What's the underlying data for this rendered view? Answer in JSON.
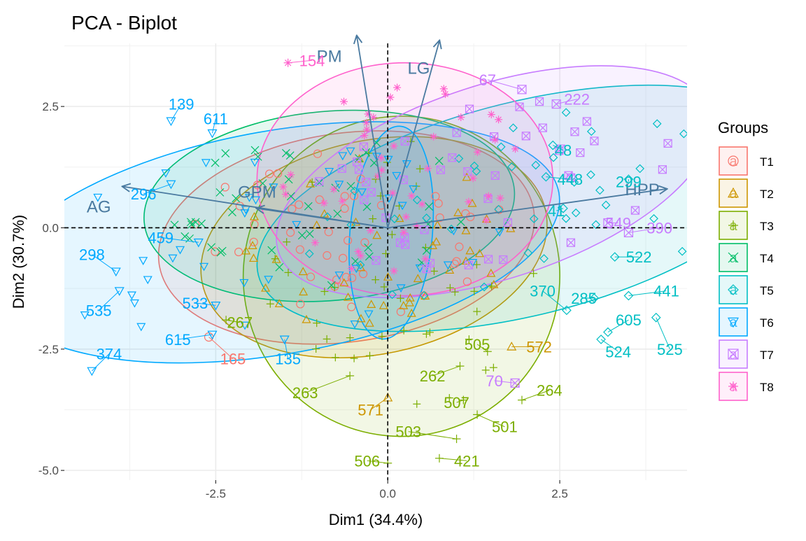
{
  "chart_data": {
    "type": "scatter",
    "title": "PCA - Biplot",
    "xlabel": "Dim1 (34.4%)",
    "ylabel": "Dim2 (30.7%)",
    "xlim": [
      -4.7,
      4.35
    ],
    "ylim": [
      -5.2,
      3.8
    ],
    "xticks": [
      -2.5,
      0.0,
      2.5
    ],
    "xtick_labels": [
      "-2.5",
      "0.0",
      "2.5"
    ],
    "yticks": [
      -5.0,
      -2.5,
      0.0,
      2.5
    ],
    "ytick_labels": [
      "-5.0",
      "-2.5",
      "0.0",
      "2.5"
    ],
    "grid": true,
    "legend": {
      "title": "Groups",
      "position": "right"
    },
    "groups": [
      {
        "name": "T1",
        "color": "#F8766D",
        "symbol": "circle"
      },
      {
        "name": "T2",
        "color": "#CD9600",
        "symbol": "triangle"
      },
      {
        "name": "T3",
        "color": "#7CAE00",
        "symbol": "plus"
      },
      {
        "name": "T4",
        "color": "#00BE67",
        "symbol": "cross"
      },
      {
        "name": "T5",
        "color": "#00BFC4",
        "symbol": "diamond"
      },
      {
        "name": "T6",
        "color": "#00A9FF",
        "symbol": "triangle-down"
      },
      {
        "name": "T7",
        "color": "#C77CFF",
        "symbol": "square-x"
      },
      {
        "name": "T8",
        "color": "#FF61CC",
        "symbol": "asterisk"
      }
    ],
    "ellipses": [
      {
        "group": "T1",
        "cx": -0.6,
        "cy": -0.2,
        "rx": 2.75,
        "ry": 2.15,
        "angle": -8
      },
      {
        "group": "T2",
        "cx": -0.2,
        "cy": -0.4,
        "rx": 2.55,
        "ry": 2.2,
        "angle": -12
      },
      {
        "group": "T3",
        "cx": 0.2,
        "cy": -1.0,
        "rx": 2.3,
        "ry": 3.3,
        "angle": 5
      },
      {
        "group": "T4",
        "cx": -0.85,
        "cy": 0.45,
        "rx": 2.7,
        "ry": 1.95,
        "angle": -5
      },
      {
        "group": "T5",
        "cx": 2.0,
        "cy": 0.4,
        "rx": 4.0,
        "ry": 2.2,
        "angle": -14
      },
      {
        "group": "T6",
        "cx": -1.6,
        "cy": -0.3,
        "rx": 4.15,
        "ry": 2.3,
        "angle": -10
      },
      {
        "group": "T7",
        "cx": 1.55,
        "cy": 0.95,
        "rx": 3.3,
        "ry": 2.0,
        "angle": -18
      },
      {
        "group": "T8",
        "cx": 0.25,
        "cy": 1.0,
        "rx": 2.15,
        "ry": 2.4,
        "angle": 0
      },
      {
        "group": "T6-inner",
        "cx": 0.05,
        "cy": -0.1,
        "rx": 0.6,
        "ry": 2.2,
        "angle": 5
      }
    ],
    "variables": [
      {
        "name": "PM",
        "x": -0.45,
        "y": 3.95,
        "lx": -0.85,
        "ly": 3.55
      },
      {
        "name": "LG",
        "x": 0.75,
        "y": 3.85,
        "lx": 0.45,
        "ly": 3.3
      },
      {
        "name": "AG",
        "x": -3.85,
        "y": 0.85,
        "lx": -4.2,
        "ly": 0.45
      },
      {
        "name": "GPM",
        "x": -1.9,
        "y": 0.4,
        "lx": -1.9,
        "ly": 0.75
      },
      {
        "name": "HPP",
        "x": 4.05,
        "y": 0.8,
        "lx": 3.7,
        "ly": 0.8
      }
    ],
    "labeled_points": [
      {
        "id": "154",
        "group": "T8",
        "x": -1.45,
        "y": 3.4,
        "lx": -1.1,
        "ly": 3.45
      },
      {
        "id": "67",
        "group": "T7",
        "x": 1.95,
        "y": 2.85,
        "lx": 1.45,
        "ly": 3.05
      },
      {
        "id": "222",
        "group": "T7",
        "x": 2.45,
        "y": 2.55,
        "lx": 2.75,
        "ly": 2.65
      },
      {
        "id": "48",
        "group": "T5",
        "x": 2.4,
        "y": 1.7,
        "lx": 2.55,
        "ly": 1.6
      },
      {
        "id": "448",
        "group": "T5",
        "x": 2.3,
        "y": 1.05,
        "lx": 2.65,
        "ly": 1.0
      },
      {
        "id": "299",
        "group": "T5",
        "x": 3.5,
        "y": 1.0,
        "lx": 3.5,
        "ly": 0.95
      },
      {
        "id": "41",
        "group": "T5",
        "x": 2.55,
        "y": 0.4,
        "lx": 2.45,
        "ly": 0.35
      },
      {
        "id": "549",
        "group": "T7",
        "x": 3.2,
        "y": 0.1,
        "lx": 3.35,
        "ly": 0.1
      },
      {
        "id": "390",
        "group": "T7",
        "x": 3.5,
        "y": -0.1,
        "lx": 3.95,
        "ly": 0.0
      },
      {
        "id": "522",
        "group": "T5",
        "x": 3.3,
        "y": -0.6,
        "lx": 3.65,
        "ly": -0.6
      },
      {
        "id": "441",
        "group": "T5",
        "x": 3.5,
        "y": -1.4,
        "lx": 4.05,
        "ly": -1.3
      },
      {
        "id": "370",
        "group": "T5",
        "x": 2.6,
        "y": -1.7,
        "lx": 2.25,
        "ly": -1.3
      },
      {
        "id": "285",
        "group": "T5",
        "x": 3.0,
        "y": -1.45,
        "lx": 2.85,
        "ly": -1.45
      },
      {
        "id": "605",
        "group": "T5",
        "x": 3.2,
        "y": -2.15,
        "lx": 3.5,
        "ly": -1.9
      },
      {
        "id": "524",
        "group": "T5",
        "x": 3.1,
        "y": -2.3,
        "lx": 3.35,
        "ly": -2.55
      },
      {
        "id": "525",
        "group": "T5",
        "x": 3.9,
        "y": -1.85,
        "lx": 4.1,
        "ly": -2.5
      },
      {
        "id": "572",
        "group": "T2",
        "x": 1.8,
        "y": -2.45,
        "lx": 2.2,
        "ly": -2.45
      },
      {
        "id": "505",
        "group": "T3",
        "x": 1.45,
        "y": -2.55,
        "lx": 1.3,
        "ly": -2.4
      },
      {
        "id": "70",
        "group": "T7",
        "x": 1.85,
        "y": -3.2,
        "lx": 1.55,
        "ly": -3.15
      },
      {
        "id": "264",
        "group": "T3",
        "x": 1.95,
        "y": -3.55,
        "lx": 2.35,
        "ly": -3.35
      },
      {
        "id": "262",
        "group": "T3",
        "x": 1.05,
        "y": -2.85,
        "lx": 0.65,
        "ly": -3.05
      },
      {
        "id": "507",
        "group": "T3",
        "x": 1.1,
        "y": -3.55,
        "lx": 1.0,
        "ly": -3.6
      },
      {
        "id": "501",
        "group": "T3",
        "x": 1.3,
        "y": -3.85,
        "lx": 1.7,
        "ly": -4.1
      },
      {
        "id": "503",
        "group": "T3",
        "x": 1.0,
        "y": -4.35,
        "lx": 0.3,
        "ly": -4.2
      },
      {
        "id": "421",
        "group": "T3",
        "x": 0.75,
        "y": -4.75,
        "lx": 1.15,
        "ly": -4.8
      },
      {
        "id": "506",
        "group": "T3",
        "x": 0.0,
        "y": -4.85,
        "lx": -0.3,
        "ly": -4.8
      },
      {
        "id": "571",
        "group": "T2",
        "x": 0.0,
        "y": -3.5,
        "lx": -0.25,
        "ly": -3.75
      },
      {
        "id": "263",
        "group": "T3",
        "x": -0.55,
        "y": -3.05,
        "lx": -1.2,
        "ly": -3.4
      },
      {
        "id": "267",
        "group": "T3",
        "x": -2.35,
        "y": -1.9,
        "lx": -2.15,
        "ly": -1.95
      },
      {
        "id": "165",
        "group": "T1",
        "x": -2.6,
        "y": -2.25,
        "lx": -2.25,
        "ly": -2.7
      },
      {
        "id": "135",
        "group": "T6",
        "x": -1.5,
        "y": -2.3,
        "lx": -1.45,
        "ly": -2.7
      },
      {
        "id": "615",
        "group": "T6",
        "x": -2.55,
        "y": -2.2,
        "lx": -3.05,
        "ly": -2.3
      },
      {
        "id": "533",
        "group": "T6",
        "x": -2.5,
        "y": -1.6,
        "lx": -2.8,
        "ly": -1.55
      },
      {
        "id": "535",
        "group": "T6",
        "x": -3.9,
        "y": -1.3,
        "lx": -4.2,
        "ly": -1.7
      },
      {
        "id": "374",
        "group": "T6",
        "x": -4.3,
        "y": -2.95,
        "lx": -4.05,
        "ly": -2.6
      },
      {
        "id": "298",
        "group": "T6",
        "x": -3.95,
        "y": -0.9,
        "lx": -4.3,
        "ly": -0.55
      },
      {
        "id": "459",
        "group": "T6",
        "x": -2.75,
        "y": -0.3,
        "lx": -3.3,
        "ly": -0.2
      },
      {
        "id": "296",
        "group": "T6",
        "x": -3.15,
        "y": 0.9,
        "lx": -3.55,
        "ly": 0.7
      },
      {
        "id": "611",
        "group": "T6",
        "x": -2.55,
        "y": 1.95,
        "lx": -2.5,
        "ly": 2.25
      },
      {
        "id": "139",
        "group": "T6",
        "x": -3.15,
        "y": 2.2,
        "lx": -3.0,
        "ly": 2.55
      }
    ]
  }
}
